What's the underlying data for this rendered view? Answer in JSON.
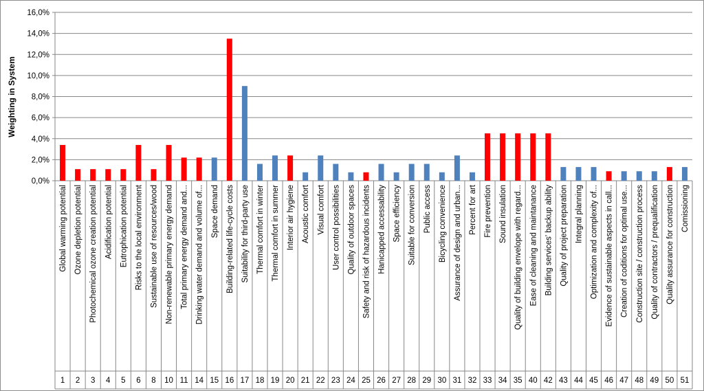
{
  "chart_data": {
    "type": "bar",
    "title": "",
    "xlabel": "",
    "ylabel": "Weighting in System",
    "ylim": [
      0,
      16
    ],
    "yticks": [
      "0,0%",
      "2,0%",
      "4,0%",
      "6,0%",
      "8,0%",
      "10,0%",
      "12,0%",
      "14,0%",
      "16,0%"
    ],
    "grid": true,
    "legend": "none",
    "colors": {
      "red": "#ff0000",
      "blue": "#4f81bd"
    },
    "categories": [
      {
        "id": "1",
        "label": "Global warming potential",
        "value": 3.4,
        "color": "red"
      },
      {
        "id": "2",
        "label": "Ozone depletion potential",
        "value": 1.1,
        "color": "red"
      },
      {
        "id": "3",
        "label": "Photochemical ozone creation potential",
        "value": 1.1,
        "color": "red"
      },
      {
        "id": "4",
        "label": "Acidification potential",
        "value": 1.1,
        "color": "red"
      },
      {
        "id": "5",
        "label": "Eutrophication potential",
        "value": 1.1,
        "color": "red"
      },
      {
        "id": "6",
        "label": "Risks to the local environment",
        "value": 3.4,
        "color": "red"
      },
      {
        "id": "8",
        "label": "Sustainable use of resources/wood",
        "value": 1.1,
        "color": "red"
      },
      {
        "id": "10",
        "label": "Non-renewable primary energy demand",
        "value": 3.4,
        "color": "red"
      },
      {
        "id": "11",
        "label": "Total primary energy demand and...",
        "value": 2.2,
        "color": "red"
      },
      {
        "id": "14",
        "label": "Drinking water demand and volume of...",
        "value": 2.2,
        "color": "red"
      },
      {
        "id": "15",
        "label": "Space demand",
        "value": 2.2,
        "color": "blue"
      },
      {
        "id": "16",
        "label": "Building-related life-cycle costs",
        "value": 13.5,
        "color": "red"
      },
      {
        "id": "17",
        "label": "Suitability for third-party use",
        "value": 9.0,
        "color": "blue"
      },
      {
        "id": "18",
        "label": "Thermal comfort in winter",
        "value": 1.6,
        "color": "blue"
      },
      {
        "id": "19",
        "label": "Thermal comfort in summer",
        "value": 2.4,
        "color": "blue"
      },
      {
        "id": "20",
        "label": "Interior air hygiene",
        "value": 2.4,
        "color": "red"
      },
      {
        "id": "21",
        "label": "Acoustic comfort",
        "value": 0.8,
        "color": "blue"
      },
      {
        "id": "22",
        "label": "Visual comfort",
        "value": 2.4,
        "color": "blue"
      },
      {
        "id": "23",
        "label": "User control possibilities",
        "value": 1.6,
        "color": "blue"
      },
      {
        "id": "24",
        "label": "Quality of outdoor spaces",
        "value": 0.8,
        "color": "blue"
      },
      {
        "id": "25",
        "label": "Safety and risk of hazardous incidents",
        "value": 0.8,
        "color": "red"
      },
      {
        "id": "26",
        "label": "Hanicapped accessability",
        "value": 1.6,
        "color": "blue"
      },
      {
        "id": "27",
        "label": "Space efficiency",
        "value": 0.8,
        "color": "blue"
      },
      {
        "id": "28",
        "label": "Suitable for conversion",
        "value": 1.6,
        "color": "blue"
      },
      {
        "id": "29",
        "label": "Public access",
        "value": 1.6,
        "color": "blue"
      },
      {
        "id": "30",
        "label": "Bicycling convenience",
        "value": 0.8,
        "color": "blue"
      },
      {
        "id": "31",
        "label": "Assurance of design and urban...",
        "value": 2.4,
        "color": "blue"
      },
      {
        "id": "32",
        "label": "Percent for art",
        "value": 0.8,
        "color": "blue"
      },
      {
        "id": "33",
        "label": "Fire prevention",
        "value": 4.5,
        "color": "red"
      },
      {
        "id": "34",
        "label": "Sound insulation",
        "value": 4.5,
        "color": "red"
      },
      {
        "id": "35",
        "label": "Quality of building envelope with regard...",
        "value": 4.5,
        "color": "red"
      },
      {
        "id": "40",
        "label": "Ease of cleaning and maintanance",
        "value": 4.5,
        "color": "red"
      },
      {
        "id": "42",
        "label": "Building services' backup ability",
        "value": 4.5,
        "color": "red"
      },
      {
        "id": "43",
        "label": "Quality of project preparation",
        "value": 1.3,
        "color": "blue"
      },
      {
        "id": "44",
        "label": "Integral planning",
        "value": 1.3,
        "color": "blue"
      },
      {
        "id": "45",
        "label": "Optimization and complexity of...",
        "value": 1.3,
        "color": "blue"
      },
      {
        "id": "46",
        "label": "Evidence of sustainable aspects in call...",
        "value": 0.9,
        "color": "red"
      },
      {
        "id": "47",
        "label": "Creation of coditions for optimal use...",
        "value": 0.9,
        "color": "blue"
      },
      {
        "id": "48",
        "label": "Construction site / construction process",
        "value": 0.9,
        "color": "blue"
      },
      {
        "id": "49",
        "label": "Quality of contractors / prequalification",
        "value": 0.9,
        "color": "blue"
      },
      {
        "id": "50",
        "label": "Quality assurance for construction",
        "value": 1.3,
        "color": "red"
      },
      {
        "id": "51",
        "label": "Comissioning",
        "value": 1.3,
        "color": "blue"
      }
    ]
  }
}
